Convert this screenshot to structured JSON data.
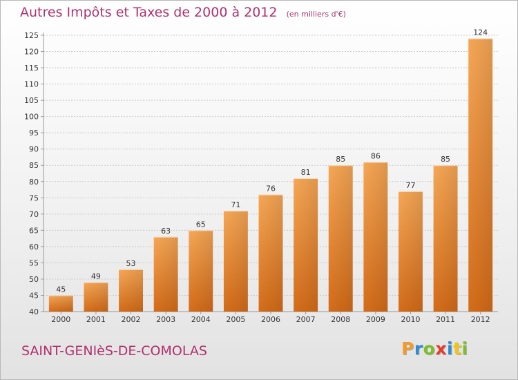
{
  "header": {
    "title": "Autres Impôts et Taxes de 2000 à 2012",
    "unit": "(en milliers d'€)"
  },
  "footer": {
    "commune": "SAINT-GENIèS-DE-COMOLAS",
    "brand": "Proxiti"
  },
  "colors": {
    "title": "#b0306f",
    "bar_light": "#f5a455",
    "bar_dark": "#d8701c",
    "axis": "#999999",
    "grid": "#c9c9c9",
    "brand_letters": [
      "#f39a2a",
      "#2e8ad1",
      "#7bbf2a",
      "#e63c2b",
      "#2e8ad1",
      "#f0c419",
      "#7bbf2a"
    ]
  },
  "chart_data": {
    "type": "bar",
    "categories": [
      "2000",
      "2001",
      "2002",
      "2003",
      "2004",
      "2005",
      "2006",
      "2007",
      "2008",
      "2009",
      "2010",
      "2011",
      "2012"
    ],
    "values": [
      45,
      49,
      53,
      63,
      65,
      71,
      76,
      81,
      85,
      86,
      77,
      85,
      124
    ],
    "ylim": [
      40,
      125
    ],
    "yticks": [
      40,
      45,
      50,
      55,
      60,
      65,
      70,
      75,
      80,
      85,
      90,
      95,
      100,
      105,
      110,
      115,
      120,
      125
    ],
    "grid": true,
    "data_labels": true
  }
}
